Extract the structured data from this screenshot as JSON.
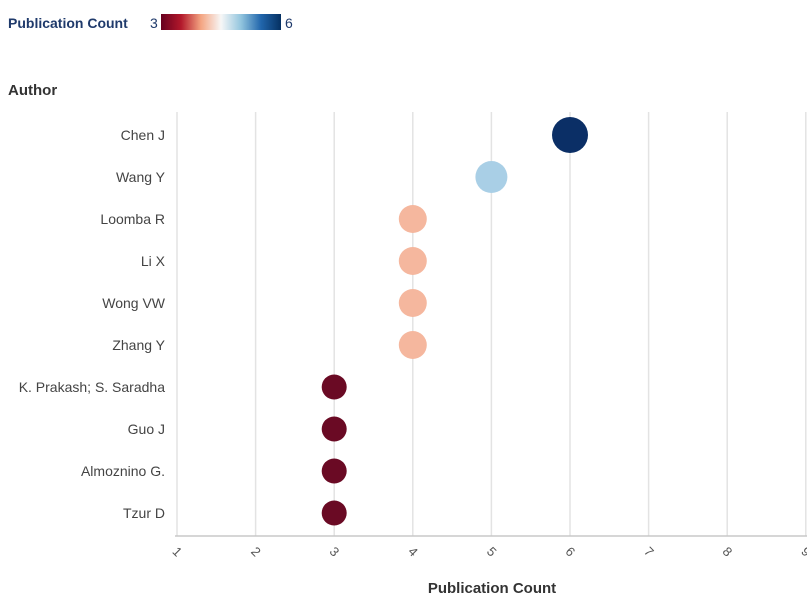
{
  "chart_data": {
    "type": "scatter",
    "xlabel": "Publication Count",
    "ylabel": "Author",
    "xlim": [
      1,
      9
    ],
    "x_ticks": [
      "1",
      "2",
      "3",
      "4",
      "5",
      "6",
      "7",
      "8",
      "9"
    ],
    "grid": true,
    "legend": {
      "title": "Publication Count",
      "min_label": "3",
      "max_label": "6",
      "position": "top-left",
      "colorscale": [
        "#67001f",
        "#b2182b",
        "#f4a582",
        "#f7f7f7",
        "#92c5de",
        "#2166ac",
        "#053061"
      ]
    },
    "categories": [
      "Chen J",
      "Wang Y",
      "Loomba R",
      "Li X",
      "Wong VW",
      "Zhang Y",
      "K. Prakash; S. Saradha",
      "Guo J",
      "Almoznino G.",
      "Tzur D"
    ],
    "values": [
      6,
      5,
      4,
      4,
      4,
      4,
      3,
      3,
      3,
      3
    ],
    "point_colors": [
      "#0b2f66",
      "#a9cfe6",
      "#f5b79e",
      "#f5b79e",
      "#f5b79e",
      "#f5b79e",
      "#6a0a24",
      "#6a0a24",
      "#6a0a24",
      "#6a0a24"
    ]
  }
}
